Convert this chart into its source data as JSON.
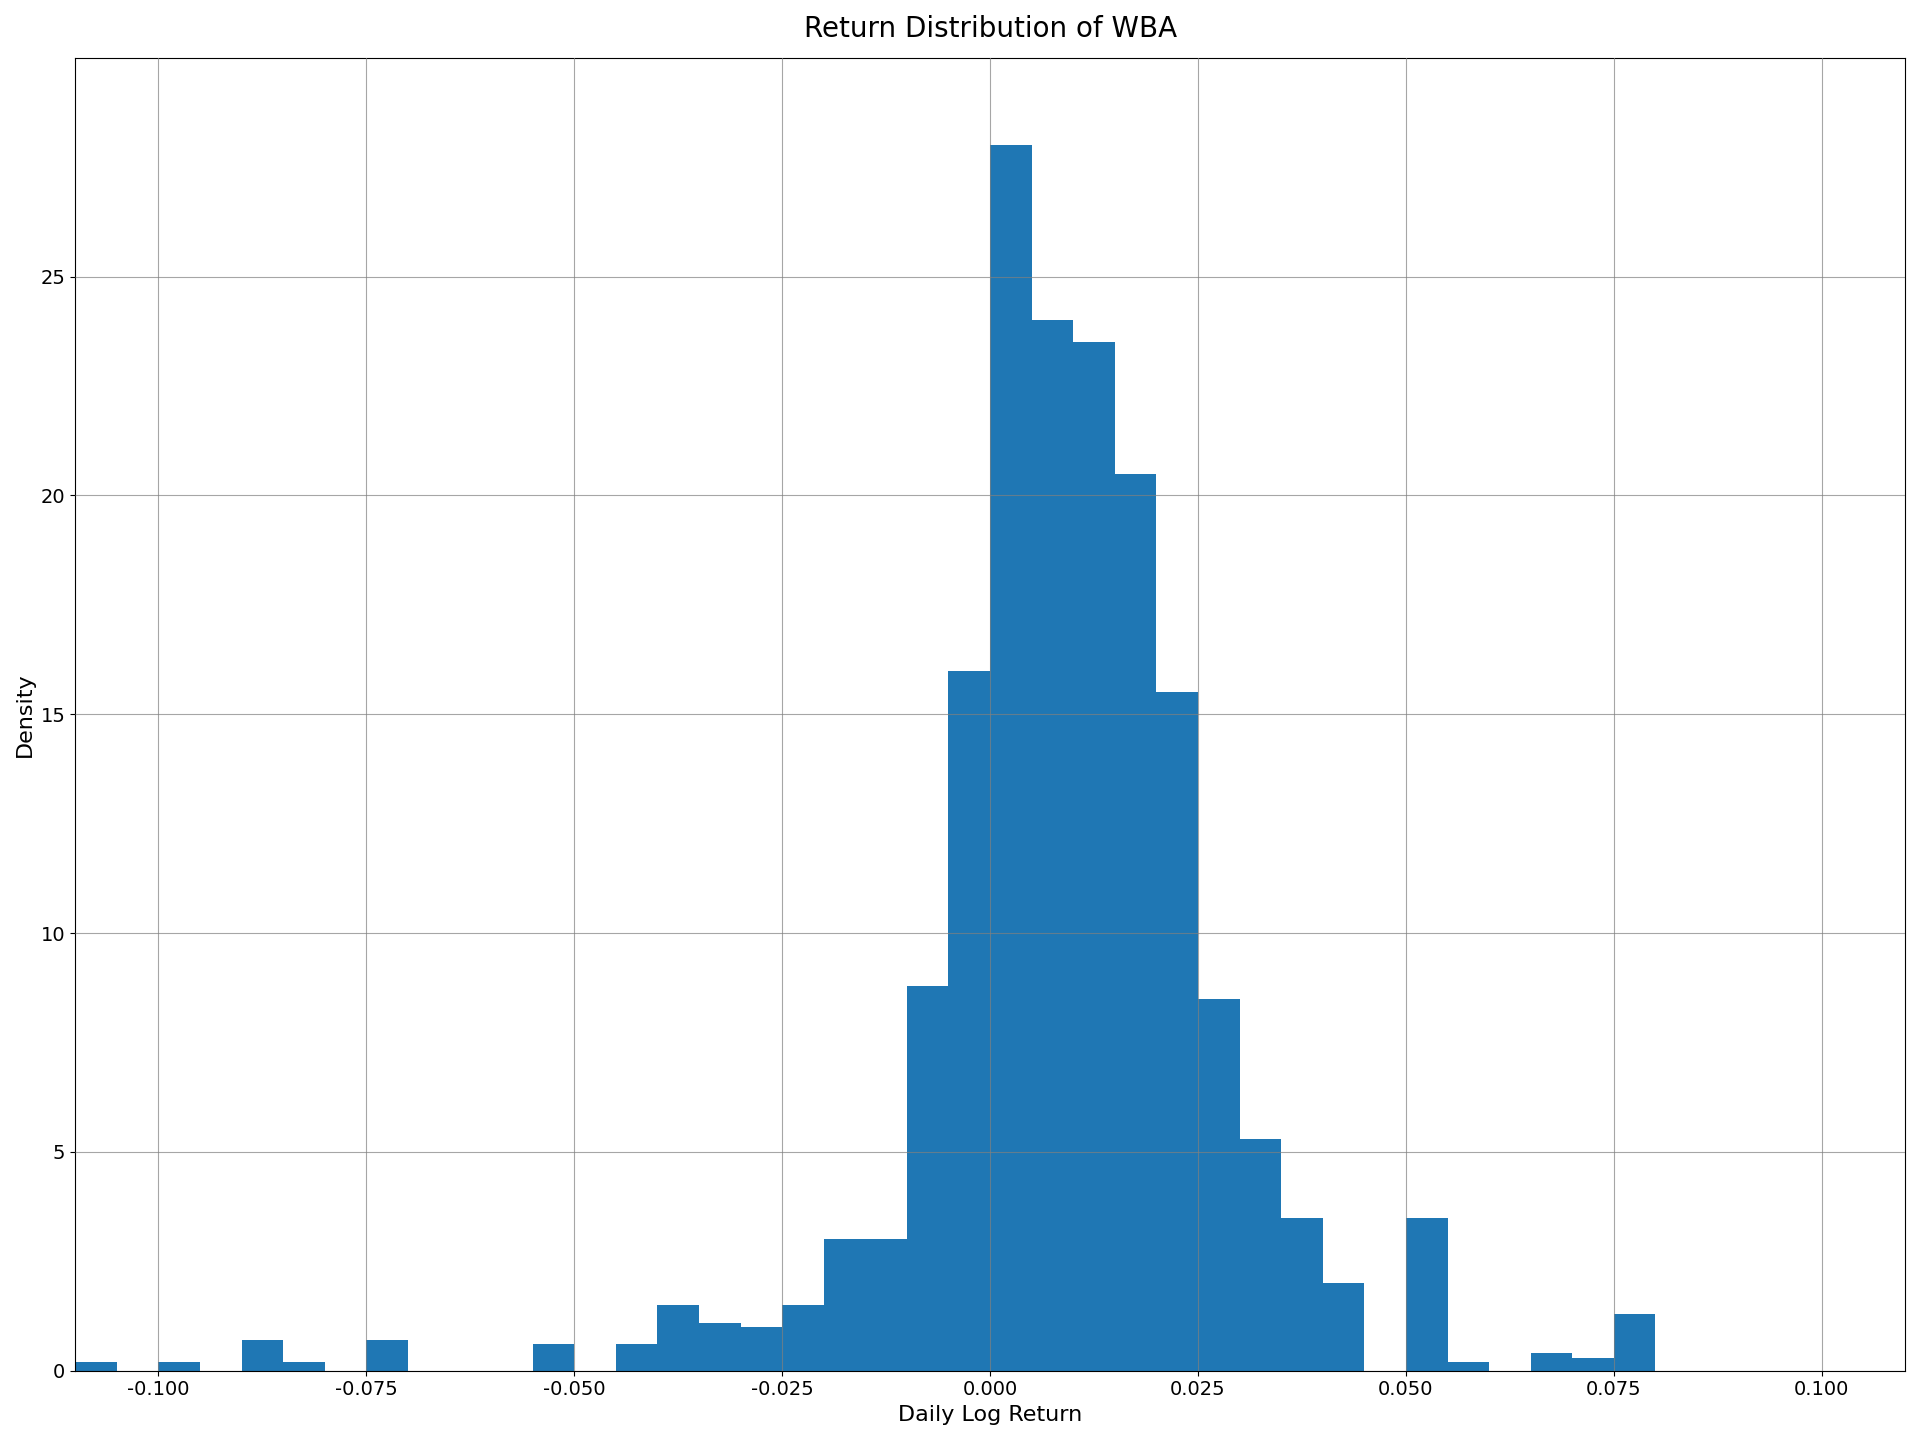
{
  "title": "Return Distribution of WBA",
  "xlabel": "Daily Log Return",
  "ylabel": "Density",
  "bar_color": "#1f77b4",
  "xlim": [
    -0.11,
    0.11
  ],
  "ylim": [
    0,
    30
  ],
  "xticks": [
    -0.1,
    -0.075,
    -0.05,
    -0.025,
    0.0,
    0.025,
    0.05,
    0.075,
    0.1
  ],
  "yticks": [
    0,
    5,
    10,
    15,
    20,
    25
  ],
  "bin_width": 0.005,
  "bin_left_edges": [
    -0.11,
    -0.105,
    -0.1,
    -0.095,
    -0.09,
    -0.085,
    -0.08,
    -0.075,
    -0.07,
    -0.065,
    -0.06,
    -0.055,
    -0.05,
    -0.045,
    -0.04,
    -0.035,
    -0.03,
    -0.025,
    -0.02,
    -0.015,
    -0.01,
    -0.005,
    0.0,
    0.005,
    0.01,
    0.015,
    0.02,
    0.025,
    0.03,
    0.035,
    0.04,
    0.045,
    0.05,
    0.055,
    0.06,
    0.065,
    0.07,
    0.075,
    0.08,
    0.085,
    0.09,
    0.095
  ],
  "densities": [
    0.2,
    0.0,
    0.2,
    0.0,
    0.7,
    0.2,
    0.0,
    0.7,
    0.0,
    0.0,
    0.0,
    0.6,
    0.0,
    0.6,
    1.5,
    1.1,
    1.0,
    1.5,
    3.0,
    3.0,
    8.8,
    16.0,
    28.0,
    24.0,
    23.5,
    20.5,
    15.5,
    8.5,
    5.3,
    3.5,
    2.0,
    0.0,
    3.5,
    0.2,
    0.0,
    0.4,
    0.3,
    1.3,
    0.0,
    0.0,
    0.0,
    0.0
  ],
  "title_fontsize": 20,
  "label_fontsize": 16,
  "tick_fontsize": 14,
  "figsize": [
    19.2,
    14.4
  ],
  "dpi": 100
}
